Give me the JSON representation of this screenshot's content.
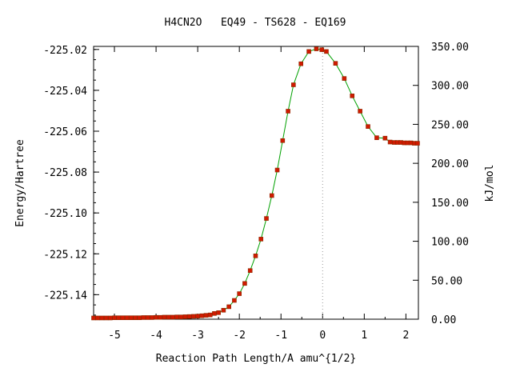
{
  "chart_data": {
    "type": "line",
    "title": "H4CN2O   EQ49 - TS628 - EQ169",
    "xlabel": "Reaction Path Length/A amu^{1/2}",
    "ylabel": "Energy/Hartree",
    "y2label": "kJ/mol",
    "xlim": [
      -5.5,
      2.3
    ],
    "ylim": [
      -225.152,
      -225.0185
    ],
    "y2lim": [
      0,
      350
    ],
    "xticks": [
      -5,
      -4,
      -3,
      -2,
      -1,
      0,
      1,
      2
    ],
    "xtick_labels": [
      "-5",
      "-4",
      "-3",
      "-2",
      "-1",
      "0",
      "1",
      "2"
    ],
    "yticks": [
      -225.14,
      -225.12,
      -225.1,
      -225.08,
      -225.06,
      -225.04,
      -225.02
    ],
    "ytick_labels": [
      "-225.14",
      "-225.12",
      "-225.10",
      "-225.08",
      "-225.06",
      "-225.04",
      "-225.02"
    ],
    "y2ticks": [
      0,
      50,
      100,
      150,
      200,
      250,
      300,
      350
    ],
    "y2tick_labels": [
      "0.00",
      "50.00",
      "100.00",
      "150.00",
      "200.00",
      "250.00",
      "300.00",
      "350.00"
    ],
    "ts_x": 0,
    "grid": false,
    "colors": {
      "line": "#00a000",
      "marker": "#d01a00",
      "ts_line": "#999999",
      "axis": "#000000"
    },
    "series": [
      {
        "x": [
          -5.5,
          -5.4,
          -5.3,
          -5.2,
          -5.1,
          -5.0,
          -4.9,
          -4.8,
          -4.7,
          -4.6,
          -4.5,
          -4.4,
          -4.3,
          -4.2,
          -4.1,
          -4.0,
          -3.9,
          -3.8,
          -3.7,
          -3.6,
          -3.5,
          -3.4,
          -3.3,
          -3.2,
          -3.1,
          -3.0,
          -2.9,
          -2.8,
          -2.7,
          -2.6,
          -2.5,
          -2.38,
          -2.25,
          -2.12,
          -2.0,
          -1.87,
          -1.74,
          -1.61,
          -1.48,
          -1.35,
          -1.22,
          -1.09,
          -0.96,
          -0.83,
          -0.7,
          -0.52,
          -0.33,
          -0.15,
          -0.02,
          0.09,
          0.31,
          0.52,
          0.71,
          0.9,
          1.09,
          1.3,
          1.5,
          1.62,
          1.72,
          1.8,
          1.88,
          1.96,
          2.04,
          2.12,
          2.2,
          2.28
        ],
        "y": [
          -225.1514,
          -225.1514,
          -225.1514,
          -225.1514,
          -225.1514,
          -225.1513,
          -225.1513,
          -225.1513,
          -225.1513,
          -225.1513,
          -225.1513,
          -225.1513,
          -225.1512,
          -225.1512,
          -225.1512,
          -225.1511,
          -225.1511,
          -225.151,
          -225.151,
          -225.151,
          -225.1509,
          -225.1509,
          -225.1508,
          -225.1507,
          -225.1506,
          -225.1505,
          -225.1503,
          -225.1501,
          -225.1499,
          -225.1492,
          -225.1488,
          -225.1476,
          -225.1459,
          -225.1428,
          -225.1395,
          -225.1345,
          -225.1282,
          -225.121,
          -225.1128,
          -225.1027,
          -225.0915,
          -225.079,
          -225.0646,
          -225.0502,
          -225.0373,
          -225.027,
          -225.021,
          -225.0197,
          -225.0201,
          -225.021,
          -225.0268,
          -225.0342,
          -225.0427,
          -225.0502,
          -225.0577,
          -225.0632,
          -225.0634,
          -225.0653,
          -225.0655,
          -225.0655,
          -225.0655,
          -225.0657,
          -225.0657,
          -225.0657,
          -225.0659,
          -225.0659
        ]
      }
    ]
  }
}
